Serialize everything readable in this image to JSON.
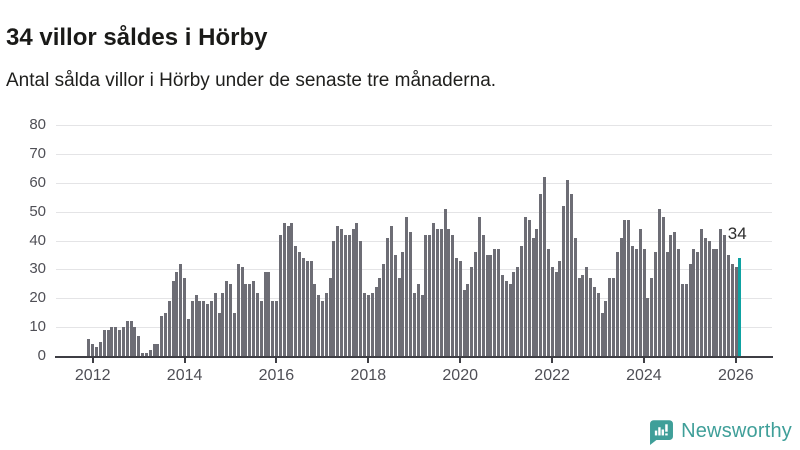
{
  "header": {
    "title": "34 villor såldes i Hörby",
    "subtitle": "Antal sålda villor i Hörby under de senaste tre månaderna."
  },
  "chart_data": {
    "type": "bar",
    "title": "34 villor såldes i Hörby",
    "subtitle": "Antal sålda villor i Hörby under de senaste tre månaderna.",
    "unit": "sålda villor (rullande 3 månader)",
    "x_monthly_from": "2011-12",
    "x_monthly_to": "2026-02",
    "x_tick_labels": [
      "2012",
      "2014",
      "2016",
      "2018",
      "2020",
      "2022",
      "2024",
      "2026"
    ],
    "y_tick_labels": [
      "0",
      "10",
      "20",
      "30",
      "40",
      "50",
      "60",
      "70",
      "80"
    ],
    "ylim": [
      0,
      80
    ],
    "grid": true,
    "bar_color": "#6d6d75",
    "highlight": {
      "position": "last",
      "label": "34",
      "value": 34,
      "color": "#0ea2a2"
    },
    "values": [
      6,
      4,
      3,
      5,
      9,
      9,
      10,
      10,
      9,
      10,
      12,
      12,
      10,
      7,
      1,
      1,
      2,
      4,
      4,
      14,
      15,
      19,
      26,
      29,
      32,
      27,
      13,
      19,
      21,
      19,
      19,
      18,
      19,
      22,
      15,
      22,
      26,
      25,
      15,
      32,
      31,
      25,
      25,
      26,
      22,
      19,
      29,
      29,
      19,
      19,
      42,
      46,
      45,
      46,
      38,
      36,
      34,
      33,
      33,
      25,
      21,
      19,
      22,
      27,
      40,
      45,
      44,
      42,
      42,
      44,
      46,
      40,
      22,
      21,
      22,
      24,
      27,
      32,
      41,
      45,
      35,
      27,
      36,
      48,
      43,
      22,
      25,
      21,
      42,
      42,
      46,
      44,
      44,
      51,
      44,
      42,
      34,
      33,
      23,
      25,
      31,
      36,
      48,
      42,
      35,
      35,
      37,
      37,
      28,
      26,
      25,
      29,
      31,
      38,
      48,
      47,
      41,
      44,
      56,
      62,
      37,
      31,
      29,
      33,
      52,
      61,
      56,
      41,
      27,
      28,
      31,
      27,
      24,
      22,
      15,
      19,
      27,
      27,
      36,
      41,
      47,
      47,
      38,
      37,
      44,
      37,
      20,
      27,
      36,
      51,
      48,
      36,
      42,
      43,
      37,
      25,
      25,
      32,
      37,
      36,
      44,
      41,
      40,
      37,
      37,
      44,
      42,
      35,
      32,
      31,
      34
    ]
  },
  "footer": {
    "brand": "Newsworthy"
  }
}
